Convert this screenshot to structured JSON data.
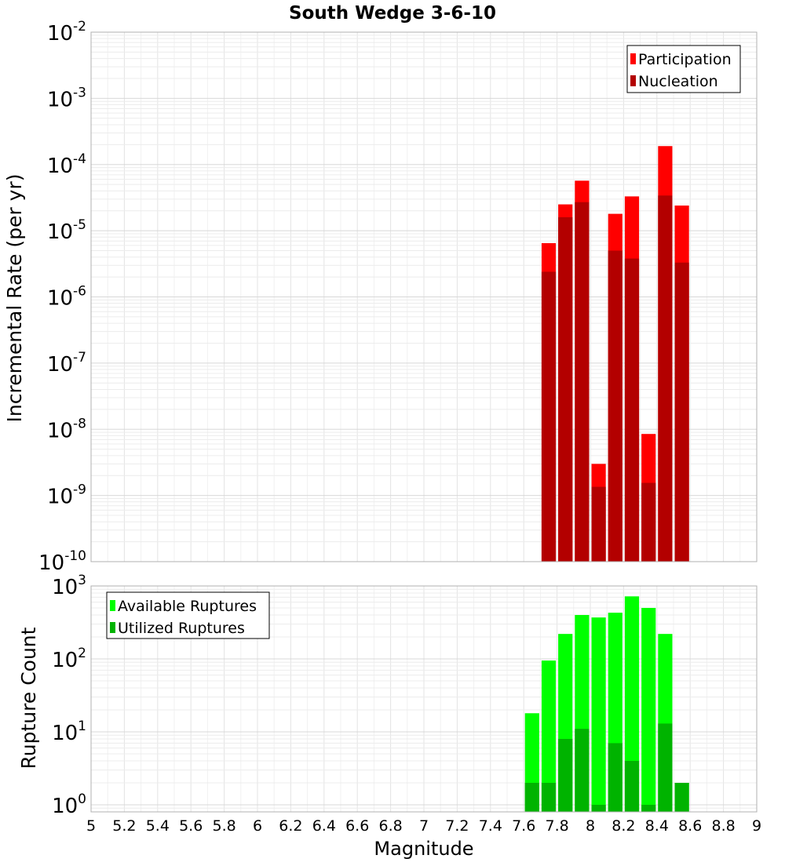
{
  "chart_data": [
    {
      "type": "bar",
      "title": "South Wedge 3-6-10",
      "xlabel": "",
      "ylabel": "Incremental Rate (per yr)",
      "yscale": "log",
      "ylim": [
        1e-10,
        0.01
      ],
      "xlim": [
        5,
        9
      ],
      "grid": true,
      "legend_position": "top-right",
      "bar_width": 0.1,
      "x": [
        7.75,
        7.85,
        7.95,
        8.05,
        8.15,
        8.25,
        8.35,
        8.45,
        8.55
      ],
      "series": [
        {
          "name": "Participation",
          "color": "#ff0000",
          "values": [
            6.5e-06,
            2.5e-05,
            5.7e-05,
            3e-09,
            1.8e-05,
            3.3e-05,
            8.5e-09,
            0.00019,
            2.4e-05
          ]
        },
        {
          "name": "Nucleation",
          "color": "#b30000",
          "values": [
            2.4e-06,
            1.6e-05,
            2.7e-05,
            1.35e-09,
            5e-06,
            3.8e-06,
            1.55e-09,
            3.4e-05,
            3.3e-06
          ]
        }
      ]
    },
    {
      "type": "bar",
      "title": "",
      "xlabel": "Magnitude",
      "ylabel": "Rupture Count",
      "yscale": "log",
      "ylim": [
        0.8,
        1000
      ],
      "xlim": [
        5,
        9
      ],
      "grid": true,
      "legend_position": "top-left",
      "bar_width": 0.1,
      "x": [
        7.65,
        7.75,
        7.85,
        7.95,
        8.05,
        8.15,
        8.25,
        8.35,
        8.45,
        8.55
      ],
      "series": [
        {
          "name": "Available Ruptures",
          "color": "#00ff00",
          "values": [
            18,
            95,
            220,
            400,
            370,
            430,
            720,
            500,
            220,
            2
          ]
        },
        {
          "name": "Utilized Ruptures",
          "color": "#00b300",
          "values": [
            2,
            2,
            8,
            11,
            1,
            7,
            4,
            1,
            13,
            2
          ]
        }
      ]
    }
  ],
  "x_ticks": [
    "5",
    "5.2",
    "5.4",
    "5.6",
    "5.8",
    "6",
    "6.2",
    "6.4",
    "6.6",
    "6.8",
    "7",
    "7.2",
    "7.4",
    "7.6",
    "7.8",
    "8",
    "8.2",
    "8.4",
    "8.6",
    "8.8",
    "9"
  ],
  "top_y_ticks": [
    {
      "base": "10",
      "exp": "-2",
      "value": 0.01
    },
    {
      "base": "10",
      "exp": "-3",
      "value": 0.001
    },
    {
      "base": "10",
      "exp": "-4",
      "value": 0.0001
    },
    {
      "base": "10",
      "exp": "-5",
      "value": 1e-05
    },
    {
      "base": "10",
      "exp": "-6",
      "value": 1e-06
    },
    {
      "base": "10",
      "exp": "-7",
      "value": 1e-07
    },
    {
      "base": "10",
      "exp": "-8",
      "value": 1e-08
    },
    {
      "base": "10",
      "exp": "-9",
      "value": 1e-09
    },
    {
      "base": "10",
      "exp": "-10",
      "value": 1e-10
    }
  ],
  "bottom_y_ticks": [
    {
      "base": "10",
      "exp": "3",
      "value": 1000
    },
    {
      "base": "10",
      "exp": "2",
      "value": 100
    },
    {
      "base": "10",
      "exp": "1",
      "value": 10
    },
    {
      "base": "10",
      "exp": "0",
      "value": 1
    }
  ]
}
